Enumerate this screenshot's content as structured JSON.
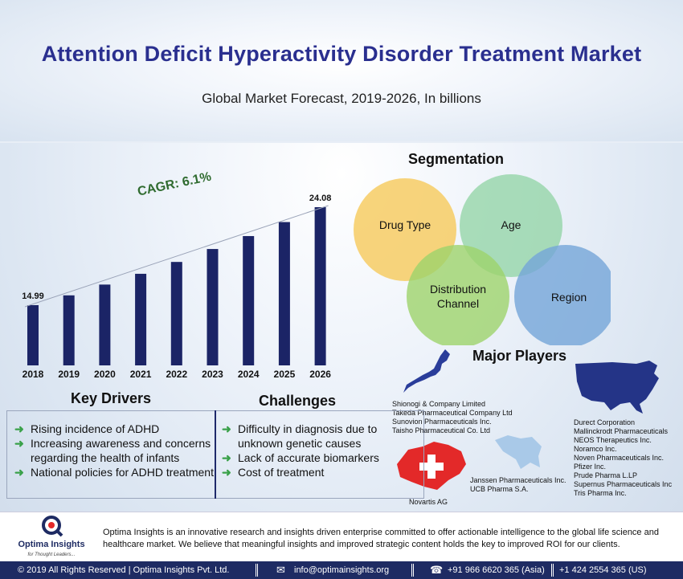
{
  "header": {
    "title": "Attention Deficit Hyperactivity Disorder Treatment Market",
    "subtitle": "Global Market Forecast, 2019-2026, In billions"
  },
  "chart_data": {
    "type": "bar",
    "categories": [
      "2018",
      "2019",
      "2020",
      "2021",
      "2022",
      "2023",
      "2024",
      "2025",
      "2026"
    ],
    "values": [
      14.99,
      15.9,
      16.9,
      17.9,
      19.0,
      20.2,
      21.4,
      22.7,
      24.08
    ],
    "data_labels": [
      "14.99",
      "",
      "",
      "",
      "",
      "",
      "",
      "",
      "24.08"
    ],
    "annotation": "CAGR: 6.1%",
    "bar_color": "#1b2466",
    "annotation_color": "#2f6b2f",
    "grid": false
  },
  "segmentation": {
    "title": "Segmentation",
    "items": [
      "Drug Type",
      "Age",
      {
        "line1": "Distribution",
        "line2": "Channel"
      },
      "Region"
    ]
  },
  "players": {
    "title": "Major Players",
    "japan": [
      "Shionogi & Company Limited",
      "Takeda Pharmaceutical Company Ltd",
      "Sunovion Pharmaceuticals Inc.",
      "Taisho Pharmaceutical Co. Ltd"
    ],
    "usa": [
      "Durect Corporation",
      "Mallinckrodt Pharmaceuticals",
      "NEOS Therapeutics Inc.",
      "Noramco Inc.",
      "Noven Pharmaceuticals Inc.",
      "Pfizer Inc.",
      "Prude Pharma L.LP",
      "Supernus Pharmaceuticals Inc",
      "Tris Pharma Inc."
    ],
    "switzerland": [
      "Novartis AG"
    ],
    "belgium": [
      "Janssen Pharmaceuticals Inc.",
      "UCB Pharma S.A."
    ]
  },
  "drivers": {
    "title": "Key Drivers",
    "items": [
      "Rising incidence of ADHD",
      "Increasing awareness and concerns regarding the health of infants",
      "National policies for ADHD treatment"
    ]
  },
  "challenges": {
    "title": "Challenges",
    "items": [
      "Difficulty in diagnosis due to unknown genetic causes",
      "Lack of accurate biomarkers",
      "Cost of treatment"
    ]
  },
  "footer": {
    "logo_name": "Optima Insights",
    "logo_tagline": "for Thought Leaders...",
    "description": "Optima Insights is an innovative research and insights driven enterprise committed to offer actionable intelligence to the global life science and healthcare market. We believe that meaningful insights and improved strategic content holds the key to improved ROI for our clients."
  },
  "contact": {
    "copyright": "© 2019 All Rights Reserved | Optima Insights Pvt. Ltd.",
    "email": "info@optimainsights.org",
    "phone_asia": "+91 966 6620 365  (Asia)",
    "phone_us": "+1 424 2554 365  (US)"
  }
}
